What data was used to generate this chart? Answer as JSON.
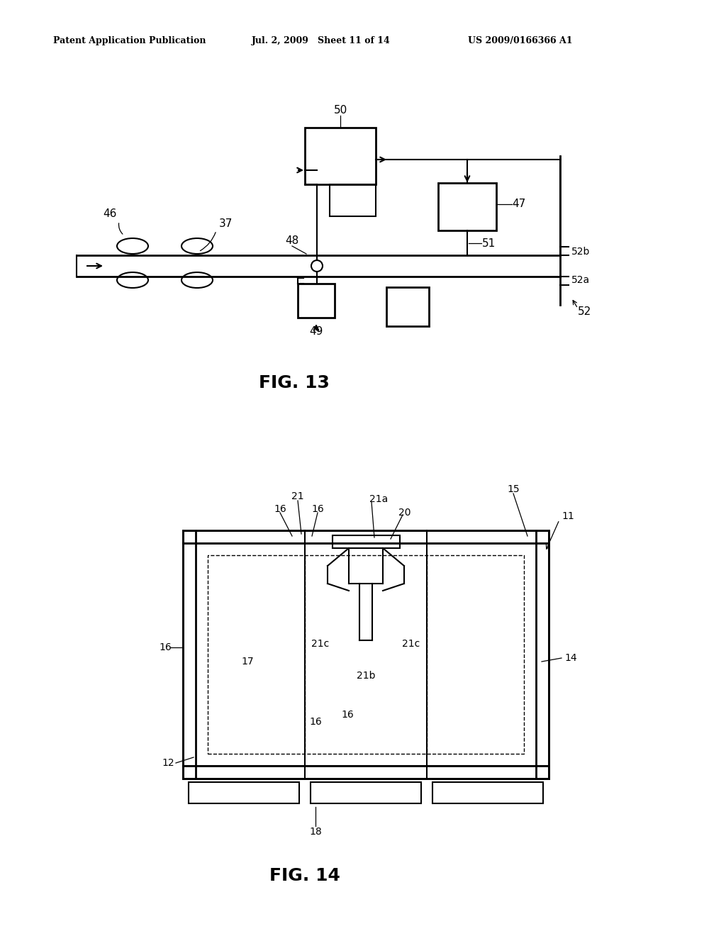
{
  "bg_color": "#ffffff",
  "header_left": "Patent Application Publication",
  "header_mid": "Jul. 2, 2009   Sheet 11 of 14",
  "header_right": "US 2009/0166366 A1",
  "fig13_caption": "FIG. 13",
  "fig14_caption": "FIG. 14"
}
